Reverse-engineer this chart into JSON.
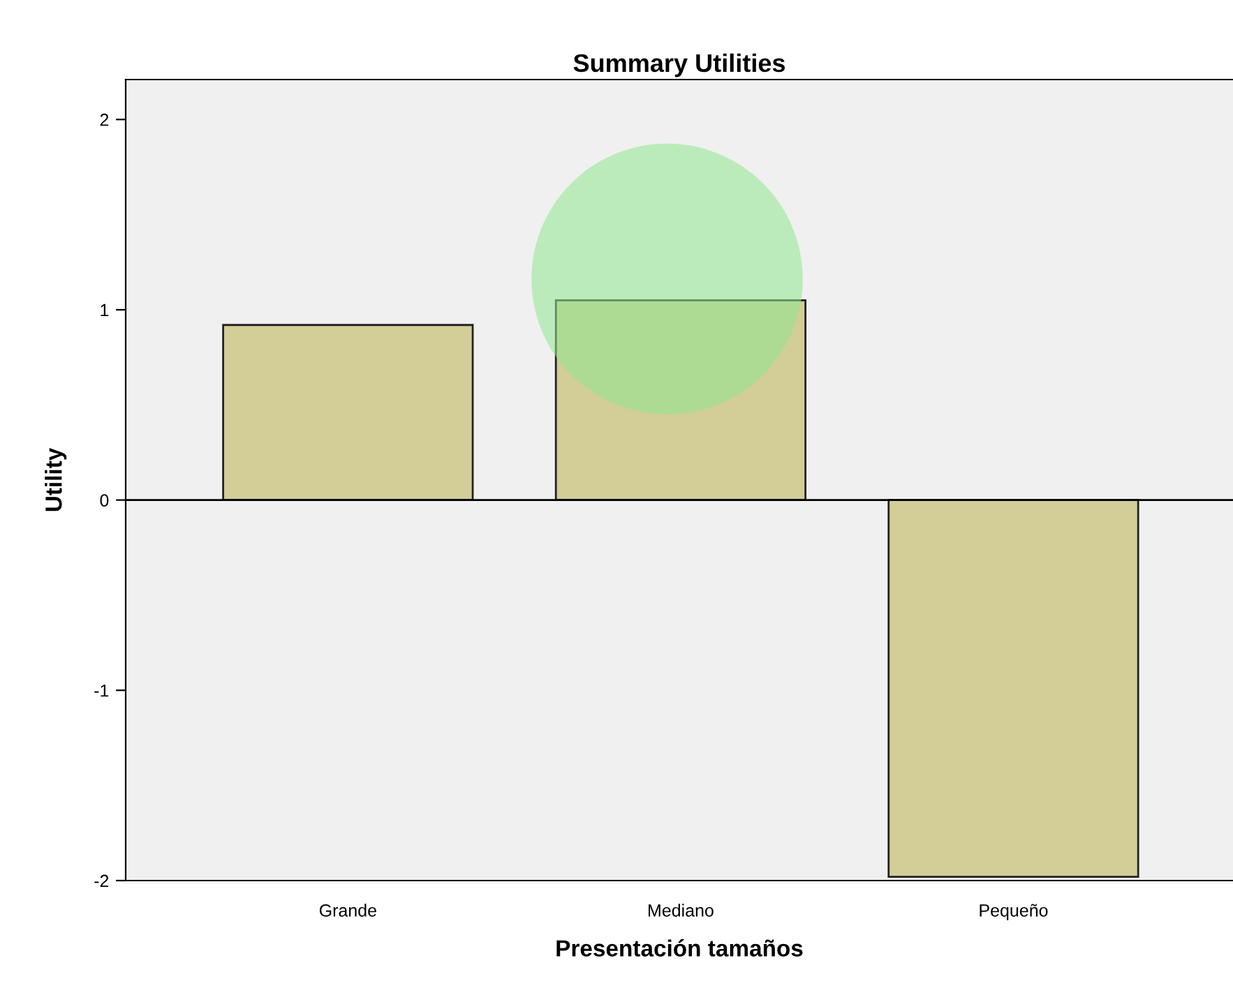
{
  "chart_data": {
    "type": "bar",
    "title": "Summary Utilities",
    "xlabel": "Presentación tamaños",
    "ylabel": "Utility",
    "categories": [
      "Grande",
      "Mediano",
      "Pequeño"
    ],
    "values": [
      0.92,
      1.05,
      -1.98
    ],
    "color": "#d3cd98",
    "ylim": [
      -2,
      2.21
    ],
    "yticks": [
      -2,
      -1,
      0,
      1,
      2
    ],
    "ref_lines": [
      {
        "axis": "y",
        "value": 0,
        "color": "#000000"
      }
    ],
    "grid": false,
    "legend": false
  }
}
